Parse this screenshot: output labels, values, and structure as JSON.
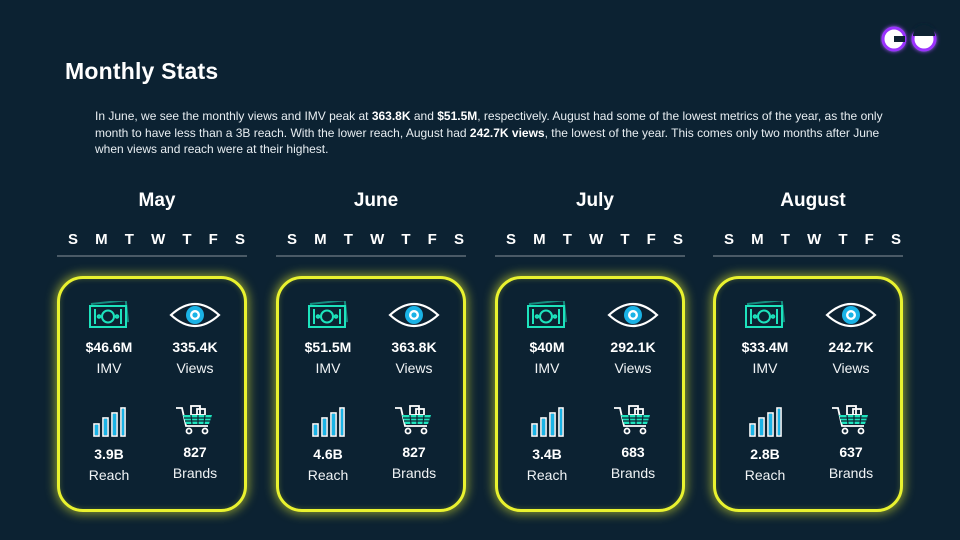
{
  "page_title": "Monthly Stats",
  "intro": {
    "p1": "In June, we see the monthly views and IMV peak at ",
    "b1": "363.8K",
    "p2": " and ",
    "b2": "$51.5M",
    "p3": ", respectively. August had some of the lowest metrics of the year, as the only month to have less than a 3B reach. With the lower reach, August had ",
    "b3": "242.7K views",
    "p4": ", the lowest of the year. This comes only two months after June when views and reach were at their highest."
  },
  "weekdays": [
    "S",
    "M",
    "T",
    "W",
    "T",
    "F",
    "S"
  ],
  "labels": {
    "imv": "IMV",
    "views": "Views",
    "reach": "Reach",
    "brands": "Brands"
  },
  "months": [
    {
      "name": "May",
      "imv": "$46.6M",
      "views": "335.4K",
      "reach": "3.9B",
      "brands": "827"
    },
    {
      "name": "June",
      "imv": "$51.5M",
      "views": "363.8K",
      "reach": "4.6B",
      "brands": "827"
    },
    {
      "name": "July",
      "imv": "$40M",
      "views": "292.1K",
      "reach": "3.4B",
      "brands": "683"
    },
    {
      "name": "August",
      "imv": "$33.4M",
      "views": "242.7K",
      "reach": "2.8B",
      "brands": "637"
    }
  ],
  "icons": {
    "imv": "money-icon",
    "views": "eye-icon",
    "reach": "bar-chart-icon",
    "brands": "shopping-cart-icon"
  },
  "colors": {
    "background": "#0c2232",
    "card_glow": "#e9f22f",
    "icon_teal": "#1de3bd",
    "icon_blue": "#1ab3e6",
    "logo_purple": "#8a2be2"
  }
}
